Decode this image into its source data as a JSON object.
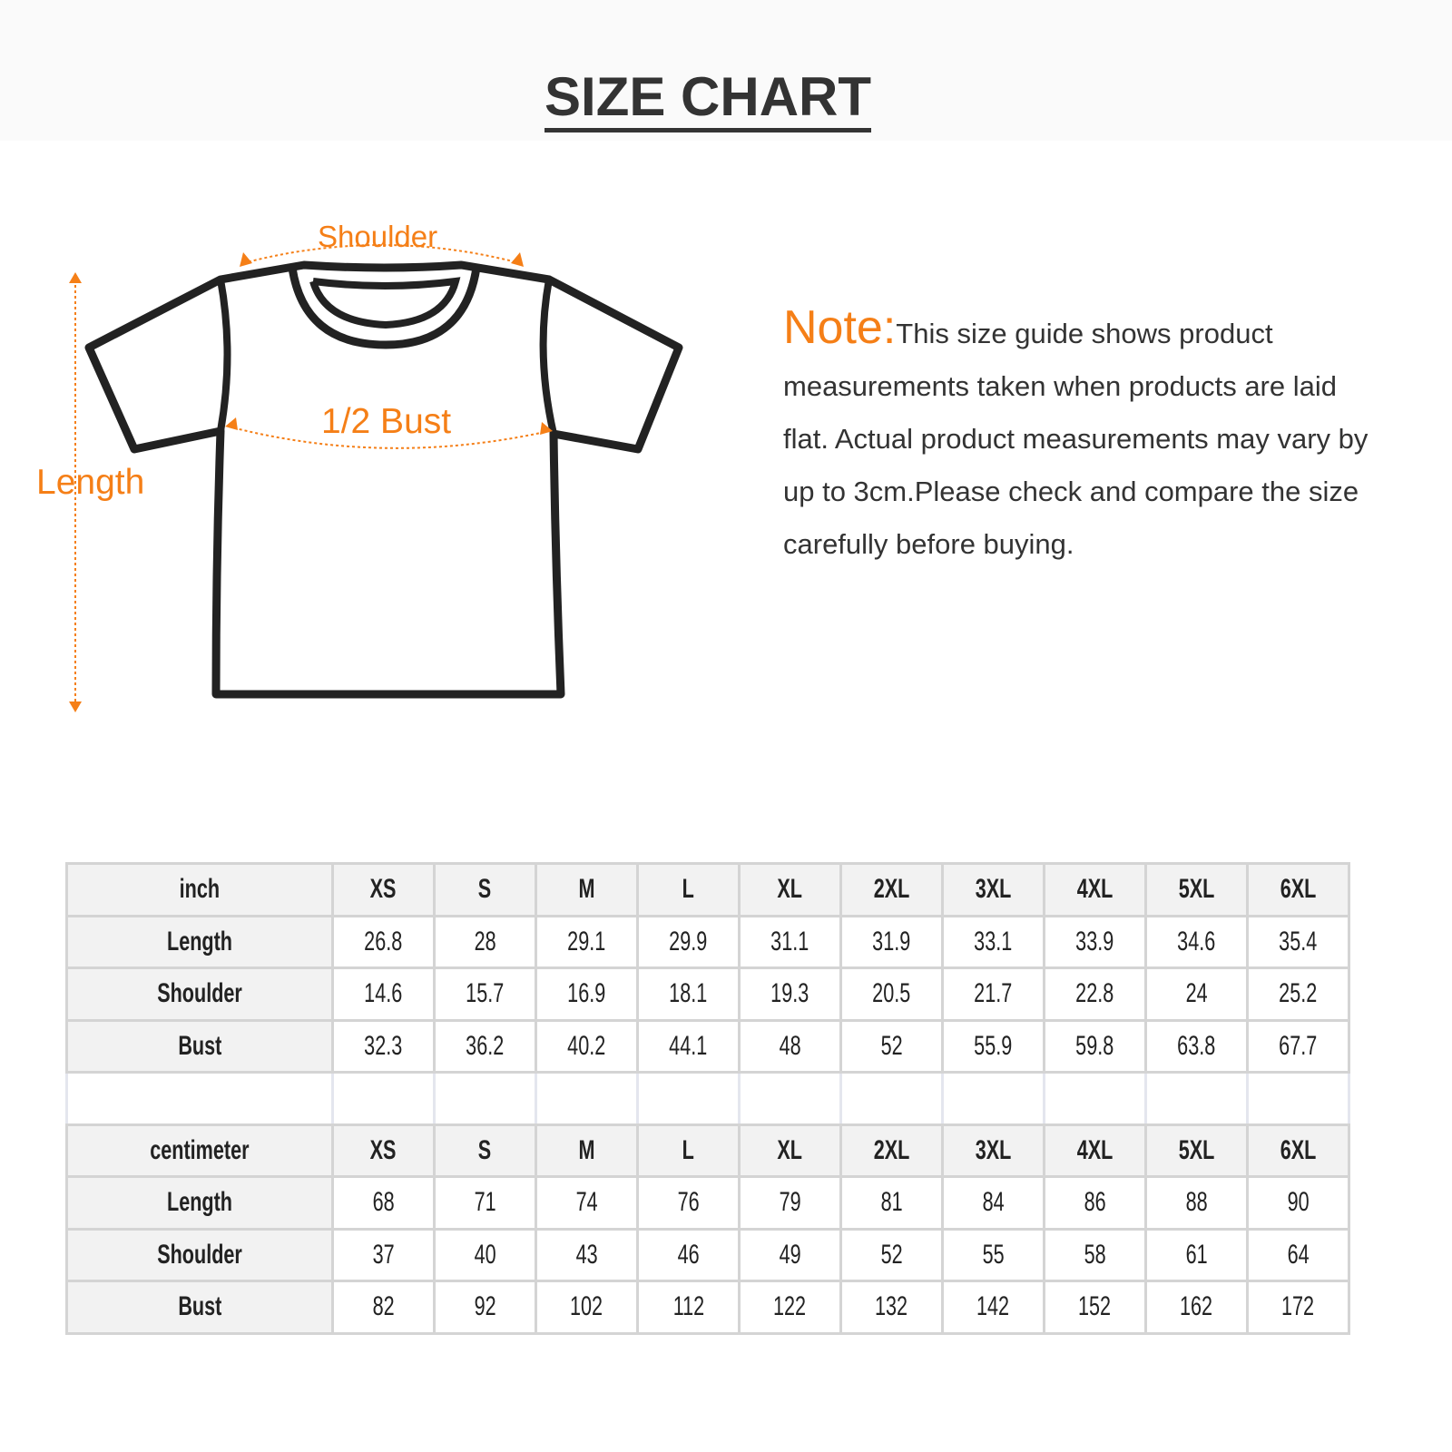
{
  "title": "SIZE CHART",
  "diagram": {
    "shoulder": "Shoulder",
    "bust": "1/2 Bust",
    "length": "Length",
    "accent": "#f57f17"
  },
  "note": {
    "label": "Note:",
    "text": "This size guide shows product measurements taken when products are laid flat. Actual product measurements may vary by up to 3cm.Please check and compare the size carefully before buying."
  },
  "sizes": [
    "XS",
    "S",
    "M",
    "L",
    "XL",
    "2XL",
    "3XL",
    "4XL",
    "5XL",
    "6XL"
  ],
  "inch": {
    "unit": "inch",
    "rows": [
      {
        "label": "Length",
        "values": [
          "26.8",
          "28",
          "29.1",
          "29.9",
          "31.1",
          "31.9",
          "33.1",
          "33.9",
          "34.6",
          "35.4"
        ]
      },
      {
        "label": "Shoulder",
        "values": [
          "14.6",
          "15.7",
          "16.9",
          "18.1",
          "19.3",
          "20.5",
          "21.7",
          "22.8",
          "24",
          "25.2"
        ]
      },
      {
        "label": "Bust",
        "values": [
          "32.3",
          "36.2",
          "40.2",
          "44.1",
          "48",
          "52",
          "55.9",
          "59.8",
          "63.8",
          "67.7"
        ]
      }
    ]
  },
  "cm": {
    "unit": "centimeter",
    "rows": [
      {
        "label": "Length",
        "values": [
          "68",
          "71",
          "74",
          "76",
          "79",
          "81",
          "84",
          "86",
          "88",
          "90"
        ]
      },
      {
        "label": "Shoulder",
        "values": [
          "37",
          "40",
          "43",
          "46",
          "49",
          "52",
          "55",
          "58",
          "61",
          "64"
        ]
      },
      {
        "label": "Bust",
        "values": [
          "82",
          "92",
          "102",
          "112",
          "122",
          "132",
          "142",
          "152",
          "162",
          "172"
        ]
      }
    ]
  }
}
